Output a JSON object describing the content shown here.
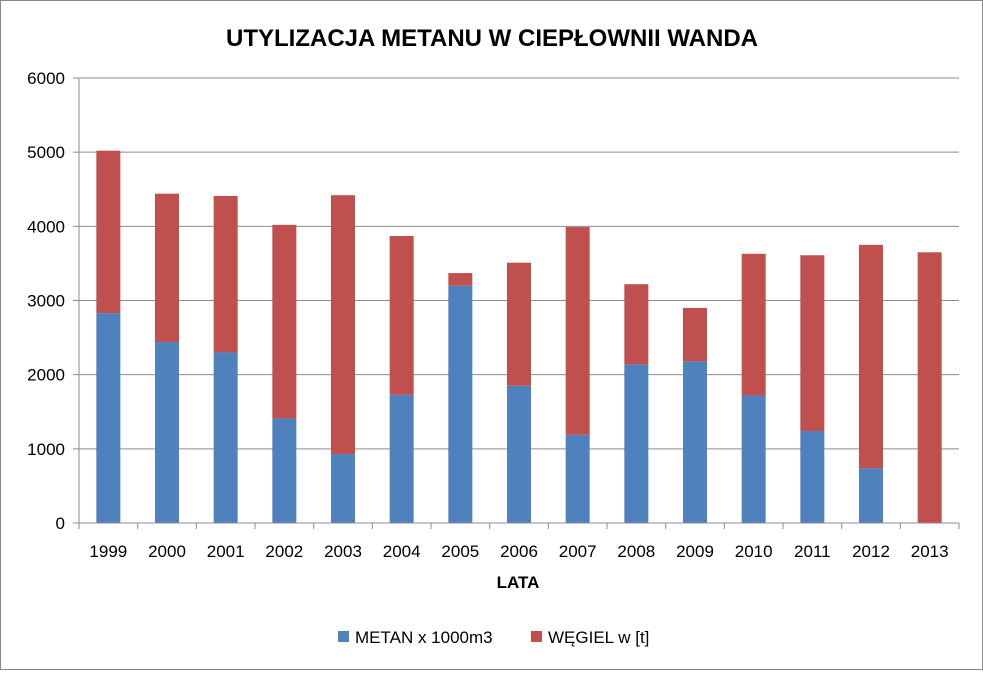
{
  "chart_data": {
    "type": "bar",
    "stacked": true,
    "title": "UTYLIZACJA METANU W CIEPŁOWNII WANDA",
    "xlabel": "LATA",
    "ylabel": "",
    "ylim": [
      0,
      6000
    ],
    "yticks": [
      "0",
      "1000",
      "2000",
      "3000",
      "4000",
      "5000",
      "6000"
    ],
    "grid": true,
    "legend_position": "bottom",
    "categories": [
      "1999",
      "2000",
      "2001",
      "2002",
      "2003",
      "2004",
      "2005",
      "2006",
      "2007",
      "2008",
      "2009",
      "2010",
      "2011",
      "2012",
      "2013"
    ],
    "series": [
      {
        "name": "METAN x 1000m3",
        "color": "#4F81BD",
        "values": [
          2830,
          2440,
          2300,
          1410,
          930,
          1730,
          3200,
          1850,
          1190,
          2140,
          2180,
          1720,
          1240,
          740,
          0
        ]
      },
      {
        "name": "WĘGIEL w [t]",
        "color": "#C0504D",
        "values": [
          2190,
          2000,
          2110,
          2610,
          3490,
          2140,
          170,
          1660,
          2800,
          1080,
          720,
          1910,
          2370,
          3010,
          3650
        ]
      }
    ]
  }
}
